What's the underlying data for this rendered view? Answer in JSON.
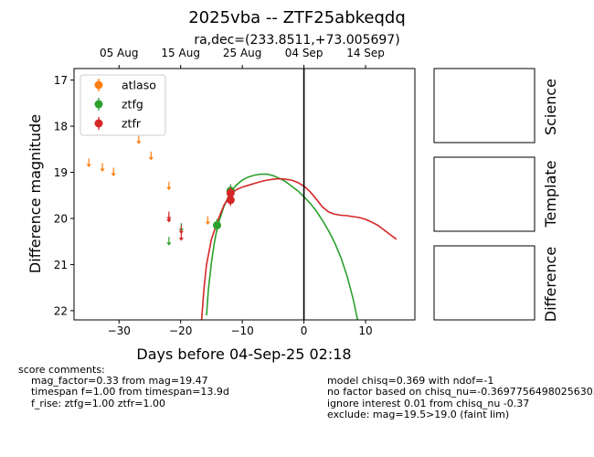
{
  "title": "2025vba -- ZTF25abkeqdq",
  "subtitle": "ra,dec=(233.8511,+73.005697)",
  "chart_data": {
    "type": "scatter",
    "xlabel": "Days before 04-Sep-25 02:18",
    "ylabel": "Difference magnitude",
    "xlim": [
      -37.3,
      18
    ],
    "ylim": [
      22.2,
      16.75
    ],
    "y_inverted": true,
    "x_ticks": [
      -30,
      -20,
      -10,
      0,
      10
    ],
    "x_tick_labels": [
      "−30",
      "−20",
      "−10",
      "0",
      "10"
    ],
    "y_ticks": [
      17,
      18,
      19,
      20,
      21,
      22
    ],
    "top_axis_ticks": [
      {
        "x": -30,
        "label": "05 Aug"
      },
      {
        "x": -20,
        "label": "15 Aug"
      },
      {
        "x": -10,
        "label": "25 Aug"
      },
      {
        "x": 0,
        "label": "04 Sep"
      },
      {
        "x": 10,
        "label": "14 Sep"
      }
    ],
    "vline_x": 0,
    "grid": false,
    "legend_position": "top-left",
    "series": [
      {
        "name": "atlaso",
        "color": "#ff7f0e",
        "upper_limits": [
          [
            -34.9,
            18.8
          ],
          [
            -32.7,
            18.9
          ],
          [
            -30.9,
            19.0
          ],
          [
            -26.8,
            18.3
          ],
          [
            -24.8,
            18.65
          ],
          [
            -21.9,
            19.3
          ],
          [
            -15.6,
            20.05
          ]
        ],
        "detections": []
      },
      {
        "name": "ztfg",
        "color": "#2ca02c",
        "upper_limits": [
          [
            -21.9,
            20.5
          ],
          [
            -19.9,
            20.2
          ]
        ],
        "detections": [
          [
            -14.1,
            20.15,
            0.06
          ],
          [
            -11.9,
            19.4,
            0.06
          ]
        ]
      },
      {
        "name": "ztfr",
        "color": "#d62728",
        "upper_limits": [
          [
            -21.9,
            19.95
          ],
          [
            -21.9,
            20.0
          ],
          [
            -19.9,
            20.25
          ],
          [
            -19.9,
            20.4
          ]
        ],
        "detections": [
          [
            -11.9,
            19.45,
            0.05
          ],
          [
            -11.9,
            19.6,
            0.05
          ]
        ]
      }
    ],
    "model_curves": [
      {
        "name": "ztfg model",
        "color": "#2ca02c",
        "points": [
          [
            -15.8,
            22.1
          ],
          [
            -15.5,
            21.55
          ],
          [
            -15.0,
            20.95
          ],
          [
            -14.5,
            20.5
          ],
          [
            -14.0,
            20.15
          ],
          [
            -13.0,
            19.75
          ],
          [
            -12.0,
            19.45
          ],
          [
            -11.0,
            19.28
          ],
          [
            -10.0,
            19.17
          ],
          [
            -9.0,
            19.1
          ],
          [
            -8.0,
            19.06
          ],
          [
            -7.0,
            19.04
          ],
          [
            -6.0,
            19.04
          ],
          [
            -5.0,
            19.07
          ],
          [
            -4.0,
            19.13
          ],
          [
            -3.0,
            19.2
          ],
          [
            -2.0,
            19.3
          ],
          [
            -1.0,
            19.4
          ],
          [
            0.0,
            19.53
          ],
          [
            1.0,
            19.67
          ],
          [
            2.0,
            19.84
          ],
          [
            3.0,
            20.04
          ],
          [
            4.0,
            20.27
          ],
          [
            5.0,
            20.53
          ],
          [
            6.0,
            20.85
          ],
          [
            7.0,
            21.25
          ],
          [
            8.0,
            21.75
          ],
          [
            8.7,
            22.2
          ]
        ]
      },
      {
        "name": "ztfr model",
        "color": "#d62728",
        "points": [
          [
            -16.6,
            22.2
          ],
          [
            -16.2,
            21.5
          ],
          [
            -15.8,
            21.0
          ],
          [
            -15.0,
            20.45
          ],
          [
            -14.0,
            20.05
          ],
          [
            -13.0,
            19.72
          ],
          [
            -12.0,
            19.5
          ],
          [
            -11.0,
            19.38
          ],
          [
            -10.0,
            19.32
          ],
          [
            -9.0,
            19.28
          ],
          [
            -8.0,
            19.24
          ],
          [
            -7.0,
            19.2
          ],
          [
            -6.0,
            19.17
          ],
          [
            -5.0,
            19.15
          ],
          [
            -4.0,
            19.14
          ],
          [
            -3.0,
            19.15
          ],
          [
            -2.0,
            19.17
          ],
          [
            -1.0,
            19.22
          ],
          [
            0.0,
            19.3
          ],
          [
            1.0,
            19.42
          ],
          [
            2.0,
            19.58
          ],
          [
            3.0,
            19.75
          ],
          [
            4.0,
            19.86
          ],
          [
            5.0,
            19.91
          ],
          [
            6.0,
            19.93
          ],
          [
            7.0,
            19.94
          ],
          [
            8.0,
            19.96
          ],
          [
            9.0,
            19.98
          ],
          [
            10.0,
            20.02
          ],
          [
            11.0,
            20.08
          ],
          [
            12.0,
            20.15
          ],
          [
            13.0,
            20.25
          ],
          [
            14.0,
            20.35
          ],
          [
            15.0,
            20.45
          ]
        ]
      }
    ]
  },
  "panels": [
    "Science",
    "Template",
    "Difference"
  ],
  "comments_left": [
    "score comments:",
    "    mag_factor=0.33 from mag=19.47",
    "    timespan f=1.00 from timespan=13.9d",
    "    f_rise: ztfg=1.00 ztfr=1.00"
  ],
  "comments_right": [
    "model chisq=0.369 with ndof=-1",
    "no factor based on chisq_nu=-0.369775649802563059",
    "ignore interest 0.01 from chisq_nu -0.37",
    "exclude: mag=19.5>19.0 (faint lim)"
  ]
}
